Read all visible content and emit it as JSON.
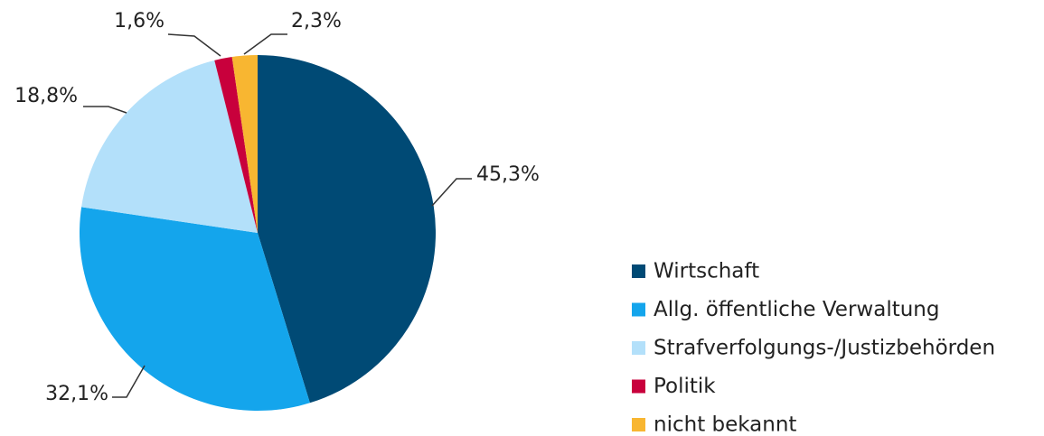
{
  "chart_data": {
    "type": "pie",
    "categories": [
      "Wirtschaft",
      "Allg. öffentliche Verwaltung",
      "Strafverfolgungs-/Justizbehörden",
      "Politik",
      "nicht bekannt"
    ],
    "values": [
      45.3,
      32.1,
      18.8,
      1.6,
      2.3
    ],
    "value_labels": [
      "45,3%",
      "32,1%",
      "18,8%",
      "1,6%",
      "2,3%"
    ],
    "colors": [
      "#004a75",
      "#14a5ec",
      "#b3e0fa",
      "#c8003c",
      "#f8b631"
    ]
  }
}
